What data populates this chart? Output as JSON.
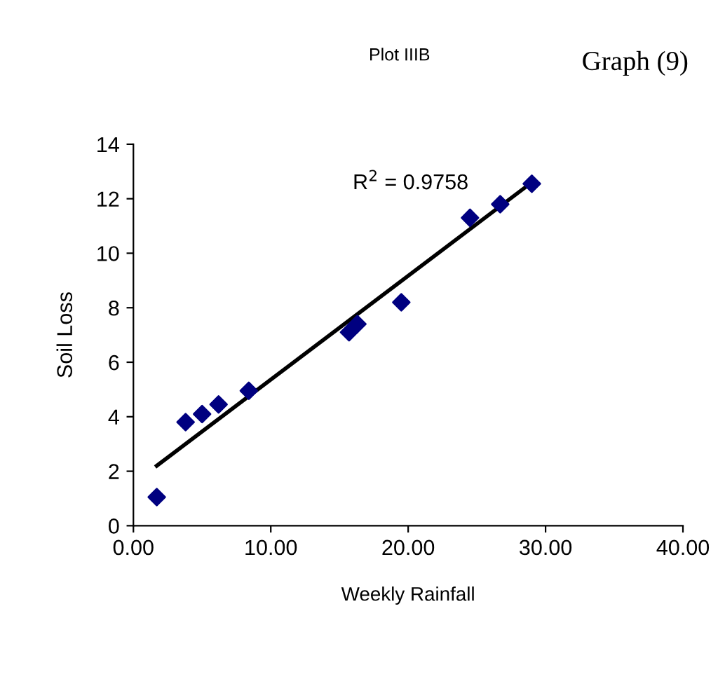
{
  "chart_data": {
    "type": "scatter",
    "title": "Plot IIIB",
    "xlabel": "Weekly Rainfall",
    "ylabel": "Soil Loss",
    "annotations": [
      "Graph (9)",
      "R$^{2}$ = 0.9758"
    ],
    "series": [
      {
        "color": "#000080",
        "marker": "diamond",
        "x": [
          1.7,
          3.8,
          5.0,
          6.2,
          8.4,
          15.7,
          16.3,
          19.5,
          24.5,
          26.7,
          29.0
        ],
        "values": [
          1.05,
          3.8,
          4.1,
          4.45,
          4.95,
          7.1,
          7.4,
          8.2,
          11.3,
          11.8,
          12.55
        ]
      },
      {
        "type": "line",
        "color": "#000000",
        "marker": "none",
        "x": [
          1.7,
          29.0
        ],
        "values": [
          2.2,
          12.6
        ]
      }
    ],
    "xlim": [
      0,
      40
    ],
    "xticks": [
      {
        "value": 0,
        "label": "0.00"
      },
      {
        "value": 10,
        "label": "10.00"
      },
      {
        "value": 20,
        "label": "20.00"
      },
      {
        "value": 30,
        "label": "30.00"
      },
      {
        "value": 40,
        "label": "40.00"
      }
    ],
    "ylim": [
      0,
      14
    ],
    "yticks": [
      0,
      2,
      4,
      6,
      8,
      10,
      12,
      14
    ],
    "grid": false,
    "legend": false
  }
}
